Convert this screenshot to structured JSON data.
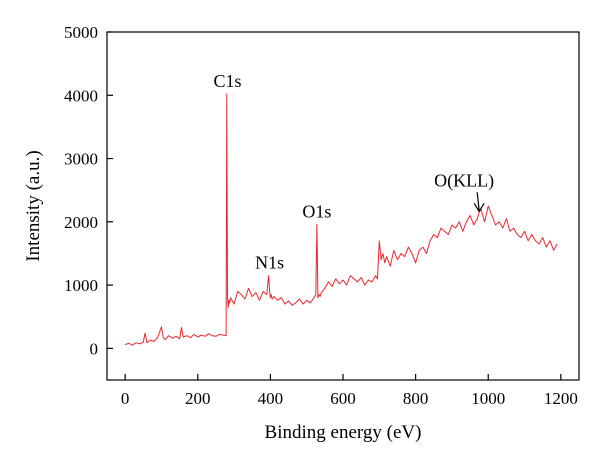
{
  "chart_data": {
    "type": "line",
    "title": "",
    "xlabel": "Binding energy (eV)",
    "ylabel": "Intensity (a.u.)",
    "xlim": [
      -50,
      1250
    ],
    "ylim": [
      -500,
      5000
    ],
    "xticks": [
      0,
      200,
      400,
      600,
      800,
      1000,
      1200
    ],
    "yticks": [
      0,
      1000,
      2000,
      3000,
      4000,
      5000
    ],
    "xtick_labels": [
      "0",
      "200",
      "400",
      "600",
      "800",
      "1000",
      "1200"
    ],
    "ytick_labels": [
      "0",
      "1000",
      "2000",
      "3000",
      "4000",
      "5000"
    ],
    "grid": false,
    "line_color": "#e8282e",
    "series": [
      {
        "x": [
          0,
          10,
          20,
          30,
          40,
          50,
          55,
          60,
          70,
          80,
          90,
          100,
          105,
          110,
          120,
          130,
          140,
          150,
          155,
          160,
          170,
          180,
          190,
          200,
          210,
          220,
          230,
          240,
          250,
          260,
          270,
          278,
          280,
          282,
          284,
          285,
          286,
          288,
          290,
          300,
          310,
          320,
          330,
          340,
          350,
          360,
          370,
          380,
          390,
          395,
          398,
          400,
          402,
          405,
          410,
          420,
          430,
          440,
          450,
          460,
          470,
          480,
          490,
          500,
          510,
          520,
          525,
          528,
          531,
          534,
          537,
          540,
          550,
          560,
          570,
          580,
          590,
          600,
          610,
          620,
          630,
          640,
          650,
          660,
          670,
          680,
          690,
          695,
          700,
          705,
          710,
          715,
          720,
          730,
          740,
          750,
          760,
          770,
          780,
          790,
          800,
          810,
          820,
          830,
          840,
          850,
          860,
          870,
          880,
          890,
          900,
          910,
          920,
          930,
          940,
          950,
          960,
          970,
          975,
          980,
          990,
          1000,
          1010,
          1020,
          1030,
          1040,
          1050,
          1060,
          1070,
          1080,
          1090,
          1100,
          1110,
          1120,
          1130,
          1140,
          1150,
          1160,
          1170,
          1180,
          1190
        ],
        "y": [
          60,
          80,
          50,
          90,
          70,
          100,
          240,
          90,
          130,
          110,
          180,
          340,
          170,
          140,
          200,
          160,
          190,
          150,
          330,
          180,
          200,
          170,
          220,
          180,
          210,
          190,
          230,
          200,
          190,
          220,
          210,
          200,
          4020,
          800,
          650,
          700,
          760,
          720,
          800,
          700,
          900,
          850,
          780,
          950,
          820,
          880,
          760,
          900,
          850,
          1150,
          900,
          800,
          850,
          780,
          820,
          760,
          800,
          700,
          750,
          680,
          720,
          780,
          700,
          760,
          720,
          800,
          850,
          1960,
          800,
          850,
          820,
          880,
          950,
          1050,
          980,
          1100,
          1020,
          1080,
          1000,
          1150,
          1100,
          1050,
          1120,
          1000,
          1080,
          1050,
          1150,
          1100,
          1700,
          1400,
          1500,
          1350,
          1450,
          1300,
          1550,
          1400,
          1500,
          1450,
          1600,
          1500,
          1350,
          1550,
          1600,
          1500,
          1700,
          1800,
          1750,
          1900,
          1850,
          1800,
          1950,
          1900,
          2000,
          1850,
          2000,
          2100,
          1950,
          2050,
          2150,
          2200,
          2000,
          2250,
          2100,
          1950,
          2000,
          1900,
          2050,
          1850,
          1900,
          1800,
          1750,
          1850,
          1700,
          1800,
          1700,
          1650,
          1750,
          1600,
          1700,
          1550,
          1650
        ]
      }
    ],
    "annotations": [
      {
        "label": "C1s",
        "x": 282,
        "y": 4020
      },
      {
        "label": "N1s",
        "x": 398,
        "y": 1150
      },
      {
        "label": "O1s",
        "x": 528,
        "y": 1960
      },
      {
        "label": "O(KLL)",
        "x": 975,
        "y": 2150,
        "arrow": true
      }
    ]
  }
}
